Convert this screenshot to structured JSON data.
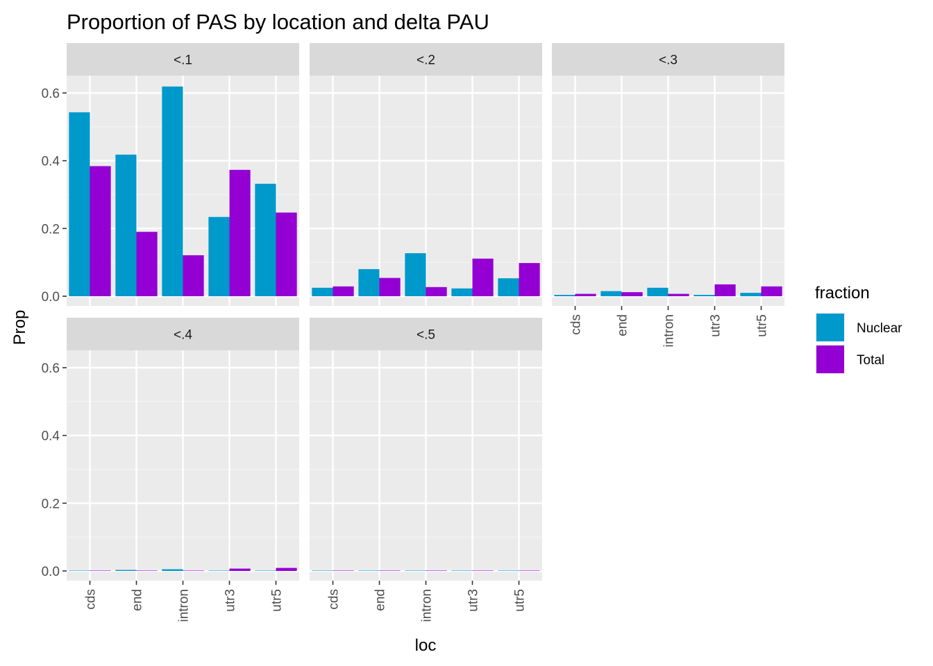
{
  "chart_data": {
    "type": "bar",
    "title": "Proportion of PAS by location and delta PAU",
    "xlabel": "loc",
    "ylabel": "Prop",
    "ylim": [
      0,
      0.6
    ],
    "yticks": [
      "0.0",
      "0.2",
      "0.4",
      "0.6"
    ],
    "categories": [
      "cds",
      "end",
      "intron",
      "utr3",
      "utr5"
    ],
    "legend": {
      "title": "fraction",
      "position": "right"
    },
    "grid": true,
    "series_colors": {
      "Nuclear": "#0099CC",
      "Total": "#9400D3"
    },
    "facets": [
      {
        "label": "<.1",
        "series": [
          {
            "name": "Nuclear",
            "values": [
              0.543,
              0.418,
              0.619,
              0.234,
              0.332
            ]
          },
          {
            "name": "Total",
            "values": [
              0.384,
              0.19,
              0.121,
              0.373,
              0.247
            ]
          }
        ]
      },
      {
        "label": "<.2",
        "series": [
          {
            "name": "Nuclear",
            "values": [
              0.025,
              0.08,
              0.127,
              0.023,
              0.053
            ]
          },
          {
            "name": "Total",
            "values": [
              0.029,
              0.054,
              0.027,
              0.111,
              0.098
            ]
          }
        ]
      },
      {
        "label": "<.3",
        "series": [
          {
            "name": "Nuclear",
            "values": [
              0.004,
              0.015,
              0.025,
              0.004,
              0.01
            ]
          },
          {
            "name": "Total",
            "values": [
              0.007,
              0.012,
              0.007,
              0.035,
              0.029
            ]
          }
        ]
      },
      {
        "label": "<.4",
        "series": [
          {
            "name": "Nuclear",
            "values": [
              0.001,
              0.003,
              0.005,
              0.001,
              0.001
            ]
          },
          {
            "name": "Total",
            "values": [
              0.001,
              0.001,
              0.001,
              0.007,
              0.009
            ]
          }
        ]
      },
      {
        "label": "<.5",
        "series": [
          {
            "name": "Nuclear",
            "values": [
              0.0,
              0.0,
              0.001,
              0.0,
              0.001
            ]
          },
          {
            "name": "Total",
            "values": [
              0.0,
              0.001,
              0.0,
              0.001,
              0.001
            ]
          }
        ]
      }
    ]
  }
}
